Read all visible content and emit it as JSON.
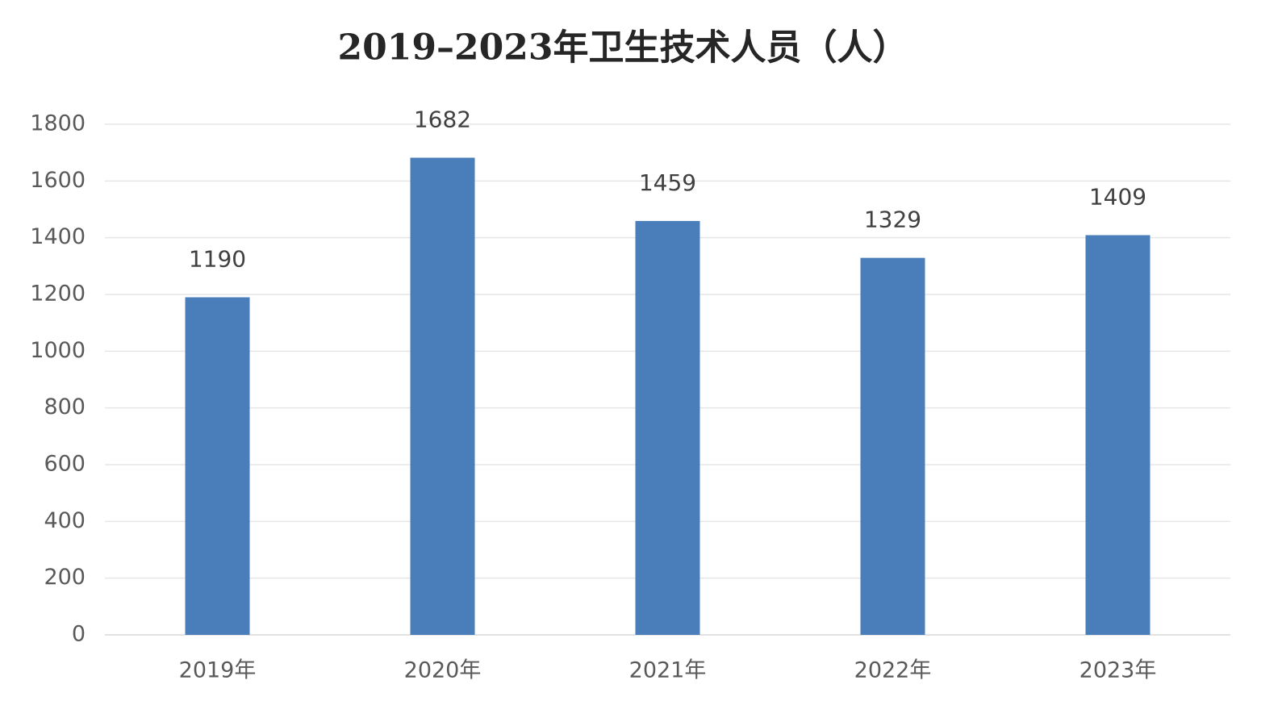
{
  "chart_data": {
    "type": "bar",
    "title": "2019–2023年卫生技术人员（人）",
    "categories": [
      "2019年",
      "2020年",
      "2021年",
      "2022年",
      "2023年"
    ],
    "values": [
      1190,
      1682,
      1459,
      1329,
      1409
    ],
    "color": "#4a7ebb",
    "ylim": [
      0,
      1800
    ],
    "yticks": [
      0,
      200,
      400,
      600,
      800,
      1000,
      1200,
      1400,
      1600,
      1800
    ],
    "grid": true
  }
}
